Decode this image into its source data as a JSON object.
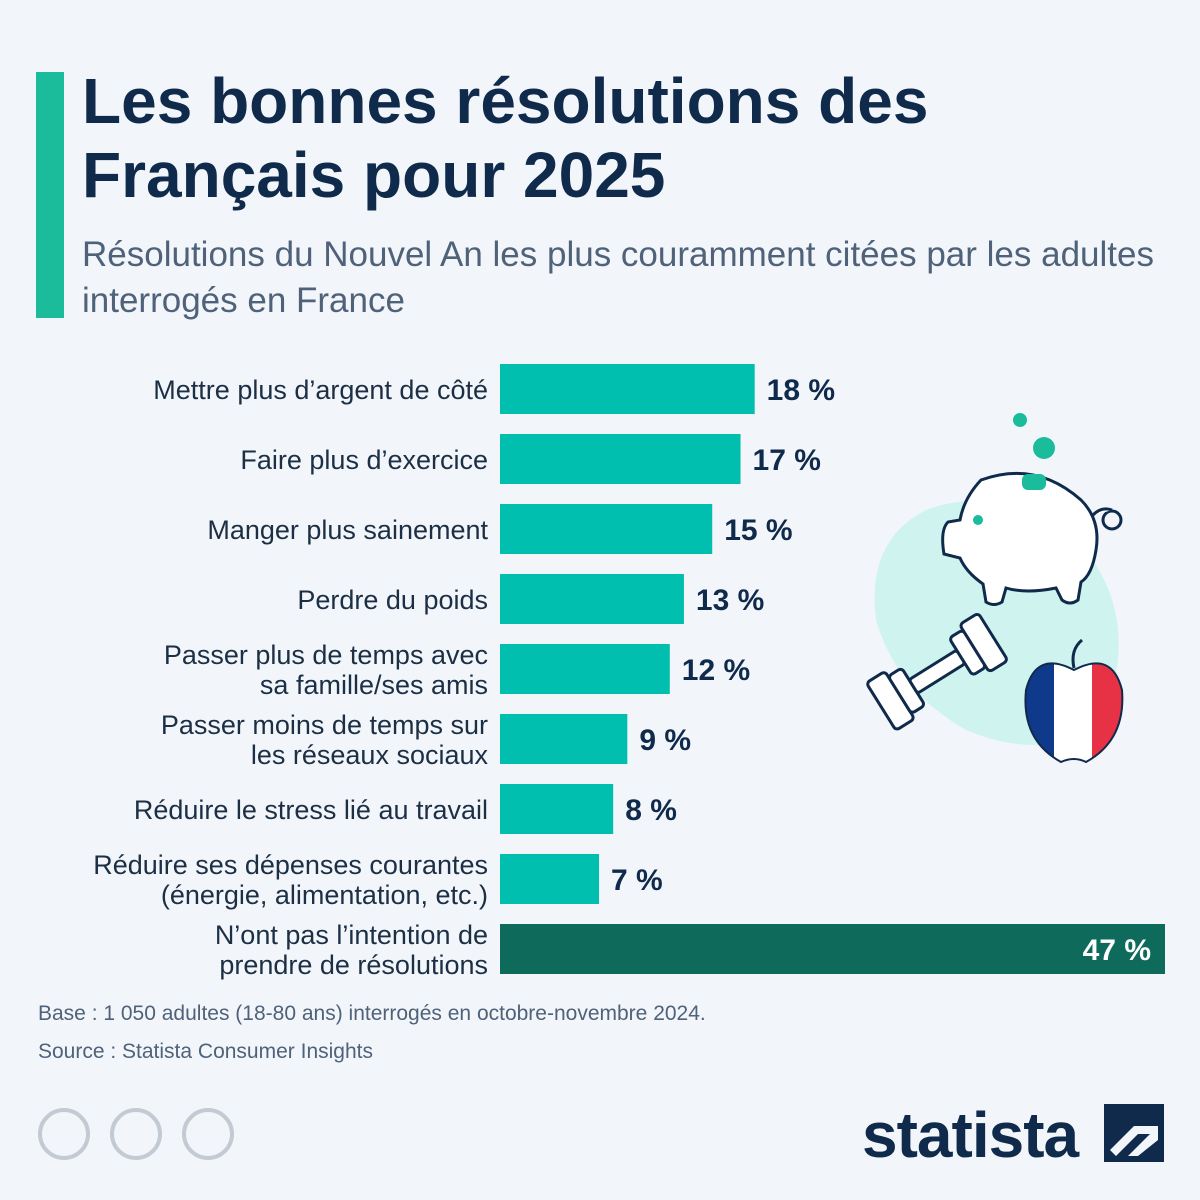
{
  "header": {
    "title": "Les bonnes résolutions des Français pour 2025",
    "subtitle": "Résolutions du Nouvel An les plus couramment citées par les adultes interrogés en France"
  },
  "chart_data": {
    "type": "bar",
    "orientation": "horizontal",
    "unit": "%",
    "categories": [
      [
        "Mettre plus d’argent de côté"
      ],
      [
        "Faire plus d’exercice"
      ],
      [
        "Manger plus sainement"
      ],
      [
        "Perdre du poids"
      ],
      [
        "Passer plus de temps avec",
        "sa famille/ses amis"
      ],
      [
        "Passer moins de temps sur",
        "les réseaux sociaux"
      ],
      [
        "Réduire le stress lié au travail"
      ],
      [
        "Réduire ses dépenses courantes",
        "(énergie, alimentation, etc.)"
      ],
      [
        "N’ont pas l’intention de",
        "prendre de résolutions"
      ]
    ],
    "values": [
      18,
      17,
      15,
      13,
      12,
      9,
      8,
      7,
      47
    ],
    "value_labels": [
      "18 %",
      "17 %",
      "15 %",
      "13 %",
      "12 %",
      "9 %",
      "8 %",
      "7 %",
      "47 %"
    ],
    "colors": [
      "#00bfae",
      "#00bfae",
      "#00bfae",
      "#00bfae",
      "#00bfae",
      "#00bfae",
      "#00bfae",
      "#00bfae",
      "#0e6b5c"
    ],
    "xlim": [
      0,
      47
    ],
    "grid": false,
    "legend": "none"
  },
  "footer": {
    "base": "Base : 1 050 adultes (18-80 ans) interrogés en octobre-novembre 2024.",
    "source": "Source : Statista Consumer Insights",
    "brand": "statista"
  },
  "icons": [
    "cc-icon",
    "attribution-icon",
    "no-derivatives-icon",
    "piggy-bank-icon",
    "dumbbell-icon",
    "apple-flag-icon",
    "statista-logo-icon"
  ],
  "colors": {
    "accent": "#1abc9c",
    "bar": "#00bfae",
    "bar_highlight": "#0e6b5c",
    "text_dark": "#0f2a4a",
    "text_muted": "#4f6279"
  }
}
